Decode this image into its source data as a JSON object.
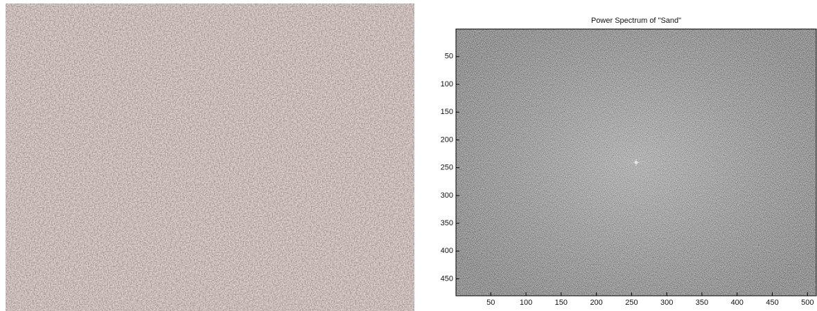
{
  "chart_data": {
    "type": "image",
    "title": "Power Spectrum of \"Sand\"",
    "xlim": [
      0.5,
      512.5
    ],
    "ylim": [
      0.5,
      480.5
    ],
    "xticks": [
      50,
      100,
      150,
      200,
      250,
      300,
      350,
      400,
      450,
      500
    ],
    "yticks": [
      50,
      100,
      150,
      200,
      250,
      300,
      350,
      400,
      450
    ],
    "y_reversed": true
  }
}
